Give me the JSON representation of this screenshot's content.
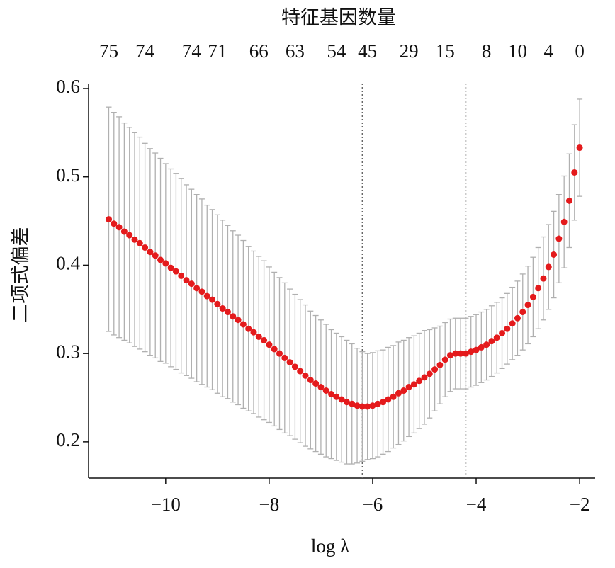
{
  "chart_data": {
    "type": "errorbar",
    "title": "特征基因数量",
    "x_label": "log λ",
    "y_label": "二项式偏差",
    "x": [
      -11.1,
      -11.0,
      -10.9,
      -10.8,
      -10.7,
      -10.6,
      -10.5,
      -10.4,
      -10.3,
      -10.2,
      -10.1,
      -10.0,
      -9.9,
      -9.8,
      -9.7,
      -9.6,
      -9.5,
      -9.4,
      -9.3,
      -9.2,
      -9.1,
      -9.0,
      -8.9,
      -8.8,
      -8.7,
      -8.6,
      -8.5,
      -8.4,
      -8.3,
      -8.2,
      -8.1,
      -8.0,
      -7.9,
      -7.8,
      -7.7,
      -7.6,
      -7.5,
      -7.4,
      -7.3,
      -7.2,
      -7.1,
      -7.0,
      -6.9,
      -6.8,
      -6.7,
      -6.6,
      -6.5,
      -6.4,
      -6.3,
      -6.2,
      -6.1,
      -6.0,
      -5.9,
      -5.8,
      -5.7,
      -5.6,
      -5.5,
      -5.4,
      -5.3,
      -5.2,
      -5.1,
      -5.0,
      -4.9,
      -4.8,
      -4.7,
      -4.6,
      -4.5,
      -4.4,
      -4.3,
      -4.2,
      -4.1,
      -4.0,
      -3.9,
      -3.8,
      -3.7,
      -3.6,
      -3.5,
      -3.4,
      -3.3,
      -3.2,
      -3.1,
      -3.0,
      -2.9,
      -2.8,
      -2.7,
      -2.6,
      -2.5,
      -2.4,
      -2.3,
      -2.2,
      -2.1,
      -2.0
    ],
    "values": [
      0.452,
      0.447,
      0.443,
      0.438,
      0.434,
      0.429,
      0.425,
      0.42,
      0.415,
      0.411,
      0.406,
      0.402,
      0.397,
      0.393,
      0.388,
      0.383,
      0.379,
      0.374,
      0.37,
      0.365,
      0.361,
      0.356,
      0.351,
      0.347,
      0.342,
      0.338,
      0.333,
      0.328,
      0.324,
      0.319,
      0.315,
      0.31,
      0.305,
      0.3,
      0.295,
      0.29,
      0.285,
      0.28,
      0.275,
      0.27,
      0.266,
      0.262,
      0.258,
      0.254,
      0.251,
      0.248,
      0.245,
      0.243,
      0.241,
      0.24,
      0.24,
      0.241,
      0.243,
      0.245,
      0.248,
      0.251,
      0.255,
      0.258,
      0.262,
      0.265,
      0.269,
      0.273,
      0.277,
      0.282,
      0.287,
      0.293,
      0.298,
      0.3,
      0.3,
      0.3,
      0.302,
      0.304,
      0.307,
      0.31,
      0.314,
      0.318,
      0.323,
      0.328,
      0.334,
      0.34,
      0.347,
      0.355,
      0.364,
      0.374,
      0.385,
      0.398,
      0.412,
      0.43,
      0.449,
      0.473,
      0.505,
      0.533
    ],
    "errors": [
      0.127,
      0.126,
      0.125,
      0.123,
      0.122,
      0.121,
      0.12,
      0.118,
      0.117,
      0.116,
      0.115,
      0.113,
      0.112,
      0.111,
      0.11,
      0.108,
      0.107,
      0.106,
      0.105,
      0.103,
      0.102,
      0.101,
      0.1,
      0.098,
      0.097,
      0.096,
      0.095,
      0.093,
      0.092,
      0.091,
      0.09,
      0.088,
      0.087,
      0.086,
      0.085,
      0.083,
      0.082,
      0.081,
      0.08,
      0.078,
      0.077,
      0.076,
      0.075,
      0.073,
      0.072,
      0.071,
      0.07,
      0.068,
      0.065,
      0.062,
      0.06,
      0.06,
      0.06,
      0.059,
      0.059,
      0.058,
      0.058,
      0.057,
      0.056,
      0.055,
      0.054,
      0.053,
      0.05,
      0.047,
      0.044,
      0.042,
      0.041,
      0.04,
      0.04,
      0.04,
      0.04,
      0.04,
      0.04,
      0.04,
      0.04,
      0.04,
      0.04,
      0.04,
      0.041,
      0.042,
      0.043,
      0.044,
      0.045,
      0.046,
      0.047,
      0.048,
      0.049,
      0.05,
      0.052,
      0.053,
      0.054,
      0.055
    ],
    "color": "#e41a1c",
    "error_color": "#b0b0b0",
    "vlines": [
      -6.2,
      -4.2
    ],
    "xlim": [
      -11.49,
      -1.7
    ],
    "ylim": [
      0.159,
      0.6056
    ],
    "xticks": [
      {
        "value": -10,
        "label": "−10"
      },
      {
        "value": -8,
        "label": "−8"
      },
      {
        "value": -6,
        "label": "−6"
      },
      {
        "value": -4,
        "label": "−4"
      },
      {
        "value": -2,
        "label": "−2"
      }
    ],
    "yticks": [
      0.2,
      0.3,
      0.4,
      0.5,
      0.6
    ],
    "top_ticks": [
      {
        "value": -11.1,
        "label": "75"
      },
      {
        "value": -10.4,
        "label": "74"
      },
      {
        "value": -9.5,
        "label": "74"
      },
      {
        "value": -9.0,
        "label": "71"
      },
      {
        "value": -8.2,
        "label": "66"
      },
      {
        "value": -7.5,
        "label": "63"
      },
      {
        "value": -6.7,
        "label": "54"
      },
      {
        "value": -6.1,
        "label": "45"
      },
      {
        "value": -5.3,
        "label": "29"
      },
      {
        "value": -4.6,
        "label": "15"
      },
      {
        "value": -3.8,
        "label": "8"
      },
      {
        "value": -3.2,
        "label": "10"
      },
      {
        "value": -2.6,
        "label": "4"
      },
      {
        "value": -2.0,
        "label": "0"
      }
    ]
  }
}
